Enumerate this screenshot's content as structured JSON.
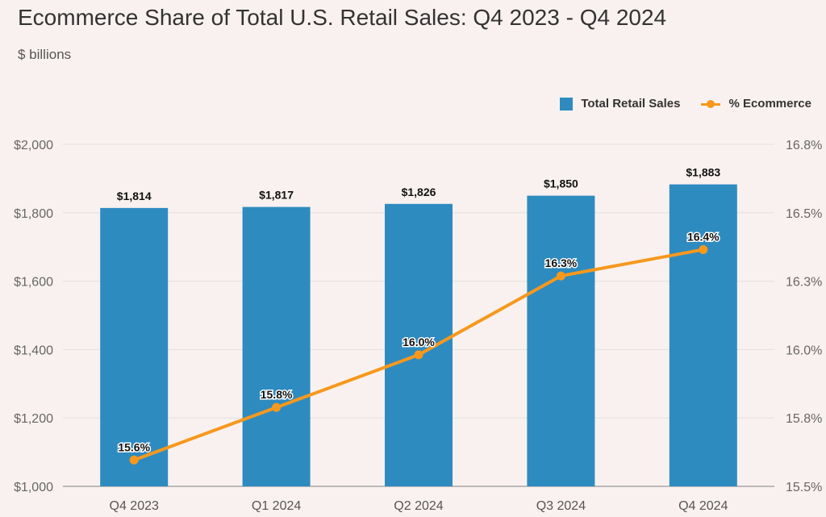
{
  "title": "Ecommerce Share of Total U.S. Retail Sales: Q4 2023 - Q4 2024",
  "subtitle": "$ billions",
  "legend": {
    "bars_label": "Total Retail Sales",
    "line_label": "% Ecommerce"
  },
  "colors": {
    "bars": "#2e8bc0",
    "line": "#f7981d",
    "background": "#f9f1ef"
  },
  "chart_data": {
    "type": "bar",
    "categories": [
      "Q4 2023",
      "Q1 2024",
      "Q2 2024",
      "Q3 2024",
      "Q4 2024"
    ],
    "series": [
      {
        "name": "Total Retail Sales",
        "type": "bar",
        "axis": "left",
        "values": [
          1814,
          1817,
          1826,
          1850,
          1883
        ],
        "labels": [
          "$1,814",
          "$1,817",
          "$1,826",
          "$1,850",
          "$1,883"
        ]
      },
      {
        "name": "% Ecommerce",
        "type": "line",
        "axis": "right",
        "values": [
          15.6,
          15.8,
          16.0,
          16.3,
          16.4
        ],
        "labels": [
          "15.6%",
          "15.8%",
          "16.0%",
          "16.3%",
          "16.4%"
        ]
      }
    ],
    "y_left": {
      "ylim": [
        1000,
        2000
      ],
      "ticks": [
        1000,
        1200,
        1400,
        1600,
        1800,
        2000
      ],
      "tick_labels": [
        "$1,000",
        "$1,200",
        "$1,400",
        "$1,600",
        "$1,800",
        "$2,000"
      ]
    },
    "y_right": {
      "ylim": [
        15.5,
        16.8
      ],
      "ticks": [
        15.5,
        15.76,
        16.02,
        16.28,
        16.54,
        16.8
      ],
      "tick_labels": [
        "15.5%",
        "15.8%",
        "16.0%",
        "16.3%",
        "16.5%",
        "16.8%"
      ]
    },
    "grid": true,
    "legend_position": "top-right"
  }
}
